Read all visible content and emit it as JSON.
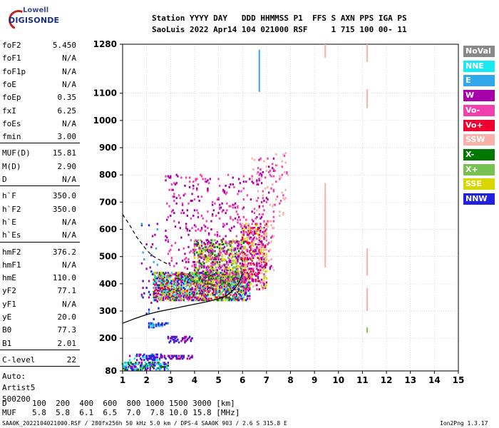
{
  "logo": {
    "top": "Lowell",
    "bottom": "DIGISONDE"
  },
  "header": {
    "line1": "Station YYYY DAY   DDD HHMMSS P1  FFS S AXN PPS IGA PS",
    "line2": "SaoLuis 2022 Apr14 104 021000 RSF     1 715 100 00- 11"
  },
  "params": {
    "group1": [
      {
        "label": "foF2",
        "value": "5.450"
      },
      {
        "label": "foF1",
        "value": "N/A"
      },
      {
        "label": "foF1p",
        "value": "N/A"
      },
      {
        "label": "foE",
        "value": "N/A"
      },
      {
        "label": "foEp",
        "value": "0.35"
      },
      {
        "label": "fxI",
        "value": "6.25"
      },
      {
        "label": "foEs",
        "value": "N/A"
      },
      {
        "label": "fmin",
        "value": "3.00"
      }
    ],
    "group2": [
      {
        "label": "MUF(D)",
        "value": "15.81"
      },
      {
        "label": "M(D)",
        "value": "2.90"
      },
      {
        "label": "D",
        "value": "N/A"
      }
    ],
    "group3": [
      {
        "label": "h`F",
        "value": "350.0"
      },
      {
        "label": "h`F2",
        "value": "350.0"
      },
      {
        "label": "h`E",
        "value": "N/A"
      },
      {
        "label": "h`Es",
        "value": "N/A"
      }
    ],
    "group4": [
      {
        "label": "hmF2",
        "value": "376.2"
      },
      {
        "label": "hmF1",
        "value": "N/A"
      },
      {
        "label": "hmE",
        "value": "110.0"
      },
      {
        "label": "yF2",
        "value": "77.1"
      },
      {
        "label": "yF1",
        "value": "N/A"
      },
      {
        "label": "yE",
        "value": "20.0"
      },
      {
        "label": "B0",
        "value": "77.3"
      },
      {
        "label": "B1",
        "value": "2.01"
      }
    ],
    "clevel": {
      "label": "C-level",
      "value": "22"
    },
    "auto": [
      "Auto:",
      "Artist5",
      "500200"
    ]
  },
  "legend": [
    {
      "label": "NoVal",
      "color": "#888888"
    },
    {
      "label": "NNE",
      "color": "#19e8f0"
    },
    {
      "label": "E",
      "color": "#30a8ec"
    },
    {
      "label": "W",
      "color": "#a800a8"
    },
    {
      "label": "Vo-",
      "color": "#f040b0"
    },
    {
      "label": "Vo+",
      "color": "#f00030"
    },
    {
      "label": "SSW",
      "color": "#f8b0a8"
    },
    {
      "label": "X-",
      "color": "#007800"
    },
    {
      "label": "X+",
      "color": "#78c050"
    },
    {
      "label": "SSE",
      "color": "#d8d800"
    },
    {
      "label": "NNW",
      "color": "#2020e0"
    }
  ],
  "footer": {
    "d_label": "D",
    "d_values": "100  200  400  600  800 1000 1500 3000 [km]",
    "muf_label": "MUF",
    "muf_values": "5.8  5.8  6.1  6.5  7.0  7.8 10.0 15.8 [MHz]",
    "file": "SAA0K_2022104021000.RSF / 280fx256h 50 kHz 5.0 km / DPS-4 SAA0K 903 / 2.6 S 315.8 E",
    "version": "Ion2Png 1.3.17"
  },
  "chart_data": {
    "type": "scatter",
    "xlim": [
      1,
      15
    ],
    "ylim": [
      80,
      1280
    ],
    "x_ticks": [
      1,
      2,
      3,
      4,
      5,
      6,
      7,
      8,
      9,
      10,
      11,
      12,
      13,
      14,
      15
    ],
    "y_ticks": [
      80,
      200,
      300,
      400,
      500,
      600,
      700,
      800,
      900,
      1000,
      1100,
      1280
    ],
    "grid": true,
    "series": [
      {
        "name": "NoVal",
        "color": "#888888"
      },
      {
        "name": "NNE",
        "color": "#19e8f0"
      },
      {
        "name": "E",
        "color": "#30a8ec"
      },
      {
        "name": "W",
        "color": "#a800a8"
      },
      {
        "name": "Vo-",
        "color": "#f040b0"
      },
      {
        "name": "Vo+",
        "color": "#f00030"
      },
      {
        "name": "SSW",
        "color": "#f8b0a8"
      },
      {
        "name": "X-",
        "color": "#007800"
      },
      {
        "name": "X+",
        "color": "#78c050"
      },
      {
        "name": "SSE",
        "color": "#d8d800"
      },
      {
        "name": "NNW",
        "color": "#2020e0"
      }
    ],
    "clusters": [
      {
        "x": [
          1.0,
          2.9
        ],
        "y": [
          85,
          110
        ],
        "density": 0.55,
        "colors": [
          "#2020e0",
          "#19e8f0",
          "#30a8ec",
          "#a800a8",
          "#007800"
        ]
      },
      {
        "x": [
          1.3,
          2.6
        ],
        "y": [
          120,
          140
        ],
        "density": 0.25,
        "colors": [
          "#a800a8",
          "#2020e0",
          "#19e8f0"
        ]
      },
      {
        "x": [
          2.0,
          3.9
        ],
        "y": [
          125,
          135
        ],
        "density": 0.45,
        "colors": [
          "#a800a8",
          "#2020e0"
        ]
      },
      {
        "x": [
          2.9,
          3.9
        ],
        "y": [
          185,
          205
        ],
        "density": 0.4,
        "colors": [
          "#2020e0",
          "#a800a8"
        ]
      },
      {
        "x": [
          2.1,
          2.9
        ],
        "y": [
          240,
          255
        ],
        "density": 0.35,
        "colors": [
          "#2020e0",
          "#30a8ec"
        ]
      },
      {
        "x": [
          2.3,
          6.3
        ],
        "y": [
          340,
          440
        ],
        "density": 0.55,
        "colors": [
          "#a800a8",
          "#f040b0",
          "#f00030",
          "#007800",
          "#78c050",
          "#d8d800",
          "#2020e0",
          "#19e8f0"
        ]
      },
      {
        "x": [
          4.0,
          6.1
        ],
        "y": [
          400,
          560
        ],
        "density": 0.35,
        "colors": [
          "#a800a8",
          "#f040b0",
          "#007800",
          "#78c050",
          "#d8d800"
        ]
      },
      {
        "x": [
          2.8,
          6.8
        ],
        "y": [
          430,
          800
        ],
        "density": 0.06,
        "colors": [
          "#a800a8",
          "#f040b0"
        ]
      },
      {
        "x": [
          6.0,
          7.0
        ],
        "y": [
          380,
          620
        ],
        "density": 0.35,
        "colors": [
          "#f8b0a8",
          "#d8d800",
          "#f00030",
          "#a800a8",
          "#f040b0"
        ]
      },
      {
        "x": [
          6.4,
          7.3
        ],
        "y": [
          450,
          860
        ],
        "density": 0.08,
        "colors": [
          "#a800a8",
          "#f040b0",
          "#f8b0a8"
        ]
      },
      {
        "x": [
          7.3,
          7.9
        ],
        "y": [
          650,
          880
        ],
        "density": 0.06,
        "colors": [
          "#f8b0a8",
          "#f040b0"
        ]
      },
      {
        "x": [
          1.8,
          2.5
        ],
        "y": [
          270,
          620
        ],
        "density": 0.04,
        "colors": [
          "#a800a8",
          "#2020e0",
          "#30a8ec"
        ]
      }
    ],
    "vertical_traces": [
      {
        "x": 6.7,
        "y": [
          1105,
          1260
        ],
        "color": "#30a8ec"
      },
      {
        "x": 9.45,
        "y": [
          1230,
          1280
        ],
        "color": "#f8b0a8"
      },
      {
        "x": 9.45,
        "y": [
          460,
          770
        ],
        "color": "#f8b0a8"
      },
      {
        "x": 11.2,
        "y": [
          1215,
          1280
        ],
        "color": "#f8b0a8"
      },
      {
        "x": 11.2,
        "y": [
          1045,
          1115
        ],
        "color": "#f8b0a8"
      },
      {
        "x": 11.2,
        "y": [
          430,
          530
        ],
        "color": "#f8b0a8"
      },
      {
        "x": 11.2,
        "y": [
          300,
          385
        ],
        "color": "#f8b0a8"
      },
      {
        "x": 11.2,
        "y": [
          220,
          240
        ],
        "color": "#78c050"
      }
    ],
    "profile_solid": [
      [
        1.0,
        255
      ],
      [
        1.5,
        272
      ],
      [
        2.0,
        287
      ],
      [
        2.5,
        298
      ],
      [
        3.0,
        307
      ],
      [
        3.5,
        316
      ],
      [
        4.0,
        325
      ],
      [
        4.5,
        334
      ],
      [
        5.0,
        345
      ],
      [
        5.3,
        355
      ],
      [
        5.5,
        368
      ],
      [
        5.7,
        385
      ],
      [
        5.85,
        405
      ],
      [
        5.95,
        425
      ],
      [
        6.0,
        445
      ]
    ],
    "profile_dashed": [
      [
        1.0,
        655
      ],
      [
        1.3,
        615
      ],
      [
        1.6,
        570
      ],
      [
        1.9,
        535
      ],
      [
        2.1,
        515
      ],
      [
        2.3,
        500
      ],
      [
        2.6,
        485
      ],
      [
        3.0,
        467
      ]
    ]
  }
}
